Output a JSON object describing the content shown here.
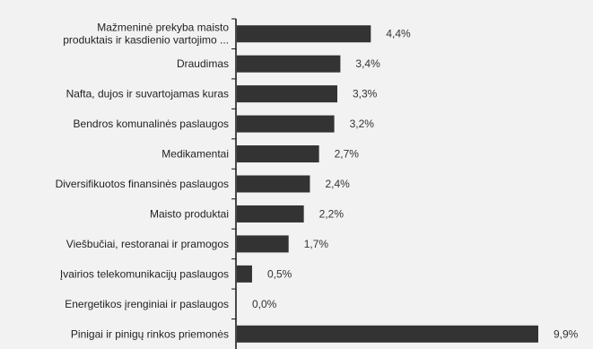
{
  "chart_data": {
    "type": "bar",
    "orientation": "horizontal",
    "categories": [
      [
        "Mažmeninė prekyba maisto",
        "produktais ir kasdienio vartojimo ..."
      ],
      [
        "Draudimas"
      ],
      [
        "Nafta, dujos ir suvartojamas kuras"
      ],
      [
        "Bendros komunalinės paslaugos"
      ],
      [
        "Medikamentai"
      ],
      [
        "Diversifikuotos finansinės paslaugos"
      ],
      [
        "Maisto produktai"
      ],
      [
        "Viešbučiai, restoranai ir pramogos"
      ],
      [
        "Įvairios telekomunikacijų paslaugos"
      ],
      [
        "Energetikos įrenginiai ir paslaugos"
      ],
      [
        "Pinigai ir pinigų rinkos priemonės"
      ]
    ],
    "values": [
      4.4,
      3.4,
      3.3,
      3.2,
      2.7,
      2.4,
      2.2,
      1.7,
      0.5,
      0.0,
      9.9
    ],
    "value_labels": [
      "4,4%",
      "3,4%",
      "3,3%",
      "3,2%",
      "2,7%",
      "2,4%",
      "2,2%",
      "1,7%",
      "0,5%",
      "0,0%",
      "9,9%"
    ],
    "xlim": [
      0,
      10
    ],
    "grid": false,
    "legend": "none",
    "bar_color": "#333333",
    "background_color": "#f2f2f2"
  }
}
